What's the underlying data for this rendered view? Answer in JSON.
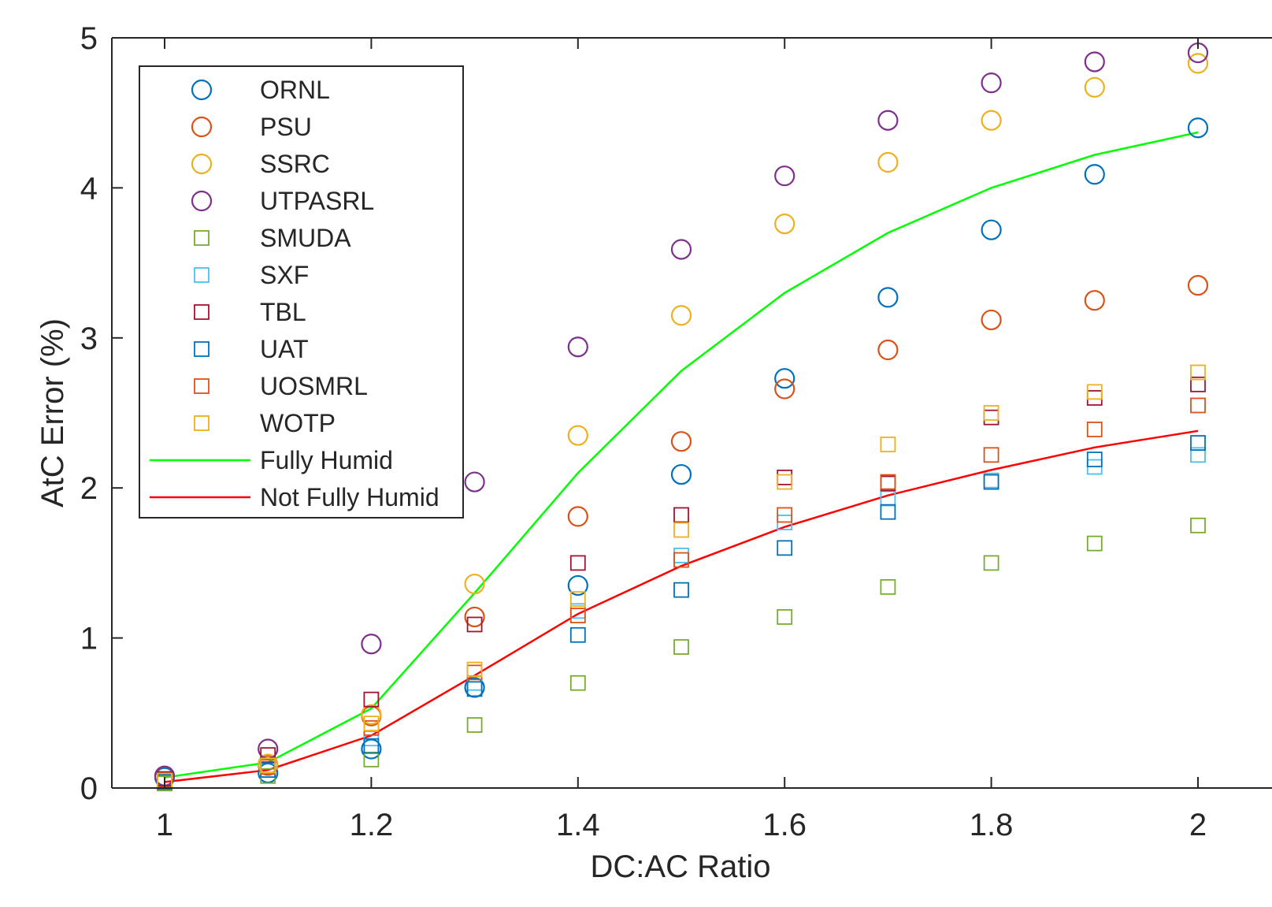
{
  "chart_data": {
    "type": "scatter",
    "xlabel": "DC:AC Ratio",
    "ylabel": "AtC Error (%)",
    "xlim": [
      0.95,
      2.02
    ],
    "ylim": [
      0,
      5
    ],
    "x_ticks": [
      "1",
      "1.2",
      "1.4",
      "1.6",
      "1.8",
      "2"
    ],
    "y_ticks": [
      "0",
      "1",
      "2",
      "3",
      "4",
      "5"
    ],
    "grid": false,
    "legend_position": "top-left",
    "x": [
      1.0,
      1.1,
      1.2,
      1.3,
      1.4,
      1.5,
      1.6,
      1.7,
      1.8,
      1.9,
      2.0
    ],
    "series": [
      {
        "name": "ORNL",
        "marker": "circle",
        "color": "#0072BD",
        "values": [
          0.07,
          0.1,
          0.26,
          0.67,
          1.35,
          2.09,
          2.73,
          3.27,
          3.72,
          4.09,
          4.4
        ]
      },
      {
        "name": "PSU",
        "marker": "circle",
        "color": "#D95319",
        "values": [
          0.08,
          0.15,
          0.48,
          1.14,
          1.81,
          2.31,
          2.66,
          2.92,
          3.12,
          3.25,
          3.35
        ]
      },
      {
        "name": "SSRC",
        "marker": "circle",
        "color": "#EDB120",
        "values": [
          0.08,
          0.16,
          0.49,
          1.36,
          2.35,
          3.15,
          3.76,
          4.17,
          4.45,
          4.67,
          4.83
        ]
      },
      {
        "name": "UTPASRL",
        "marker": "circle",
        "color": "#7E2F8E",
        "values": [
          0.08,
          0.26,
          0.96,
          2.04,
          2.94,
          3.59,
          4.08,
          4.45,
          4.7,
          4.84,
          4.9
        ]
      },
      {
        "name": "SMUDA",
        "marker": "square",
        "color": "#77AC30",
        "values": [
          0.03,
          0.08,
          0.19,
          0.42,
          0.7,
          0.94,
          1.14,
          1.34,
          1.5,
          1.63,
          1.75
        ]
      },
      {
        "name": "SXF",
        "marker": "square",
        "color": "#4DBEEE",
        "values": [
          0.04,
          0.12,
          0.33,
          0.7,
          1.18,
          1.55,
          1.77,
          1.93,
          2.05,
          2.14,
          2.22
        ]
      },
      {
        "name": "TBL",
        "marker": "square",
        "color": "#A2142F",
        "values": [
          0.06,
          0.22,
          0.59,
          1.09,
          1.5,
          1.82,
          2.07,
          2.03,
          2.47,
          2.6,
          2.69
        ]
      },
      {
        "name": "UAT",
        "marker": "square",
        "color": "#0072BD",
        "values": [
          0.04,
          0.12,
          0.28,
          0.66,
          1.02,
          1.32,
          1.6,
          1.84,
          2.04,
          2.19,
          2.3
        ]
      },
      {
        "name": "UOSMRL",
        "marker": "square",
        "color": "#D95319",
        "values": [
          0.05,
          0.14,
          0.4,
          0.77,
          1.15,
          1.52,
          1.82,
          2.04,
          2.22,
          2.39,
          2.55
        ]
      },
      {
        "name": "WOTP",
        "marker": "square",
        "color": "#EDB120",
        "values": [
          0.05,
          0.15,
          0.43,
          0.79,
          1.26,
          1.72,
          2.04,
          2.29,
          2.5,
          2.64,
          2.77
        ]
      },
      {
        "name": "Fully Humid",
        "marker": "line",
        "color": "#00FF00",
        "values": [
          0.07,
          0.17,
          0.53,
          1.3,
          2.1,
          2.78,
          3.3,
          3.7,
          4.0,
          4.22,
          4.37
        ]
      },
      {
        "name": "Not Fully Humid",
        "marker": "line",
        "color": "#FF0000",
        "values": [
          0.04,
          0.12,
          0.35,
          0.75,
          1.16,
          1.48,
          1.74,
          1.95,
          2.12,
          2.27,
          2.38
        ]
      }
    ]
  }
}
